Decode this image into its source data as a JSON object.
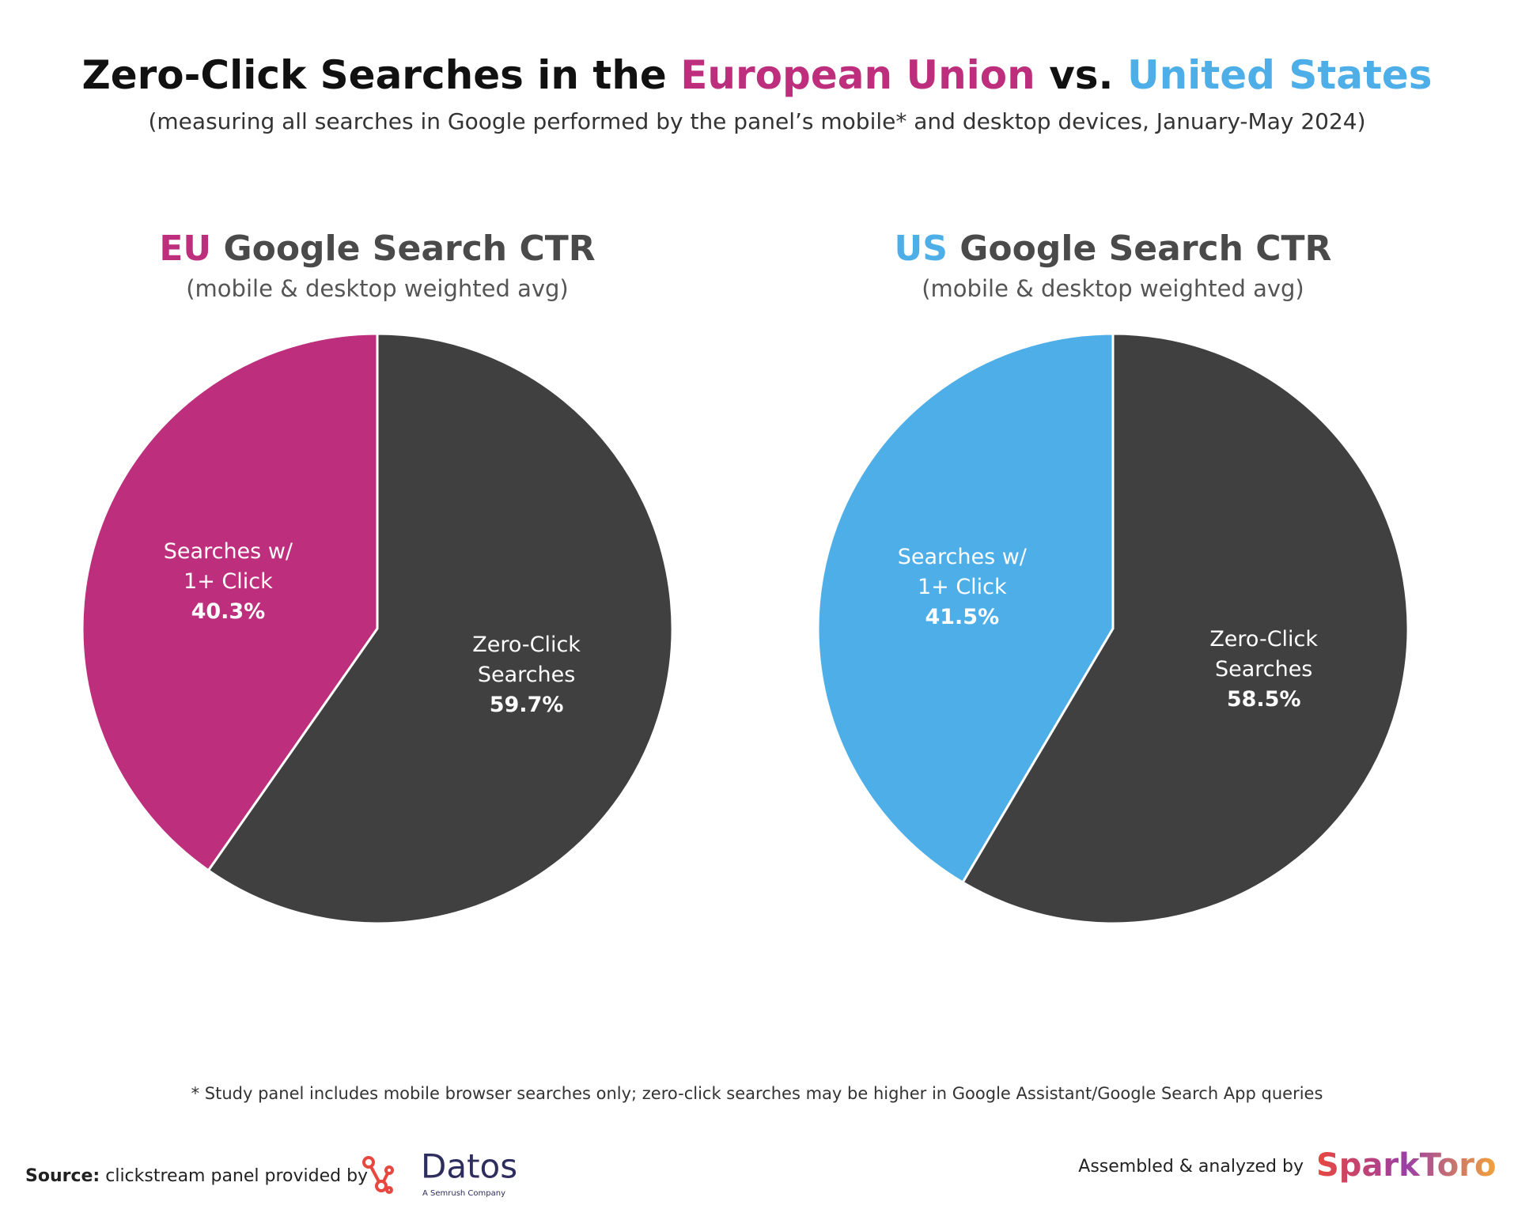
{
  "header": {
    "title_parts": [
      "Zero-Click Searches in the",
      "European Union",
      "vs.",
      "United States"
    ],
    "subtitle": "(measuring all searches in Google performed by the panel’s mobile* and desktop devices, January-May 2024)"
  },
  "chart_data": [
    {
      "type": "pie",
      "title_parts": [
        "EU",
        "Google Search CTR"
      ],
      "subtitle": "(mobile & desktop weighted avg)",
      "categories": [
        "Searches w/ 1+ Click",
        "Zero-Click Searches"
      ],
      "values": [
        40.3,
        59.7
      ],
      "value_labels": [
        "40.3%",
        "59.7%"
      ],
      "colors": [
        "#bd2f7c",
        "#404040"
      ]
    },
    {
      "type": "pie",
      "title_parts": [
        "US",
        "Google Search CTR"
      ],
      "subtitle": "(mobile & desktop weighted avg)",
      "categories": [
        "Searches w/ 1+ Click",
        "Zero-Click Searches"
      ],
      "values": [
        41.5,
        58.5
      ],
      "value_labels": [
        "41.5%",
        "58.5%"
      ],
      "colors": [
        "#4eaee8",
        "#404040"
      ]
    }
  ],
  "footnote": "* Study panel includes mobile browser searches only; zero-click searches may be higher in Google Assistant/Google Search App queries",
  "footer": {
    "source_label": "Source:",
    "source_text": "clickstream panel provided by",
    "datos_logo": "Datos",
    "datos_tagline": "A Semrush Company",
    "credit": "Assembled & analyzed by",
    "sparktoro_logo": "SparkToro"
  }
}
